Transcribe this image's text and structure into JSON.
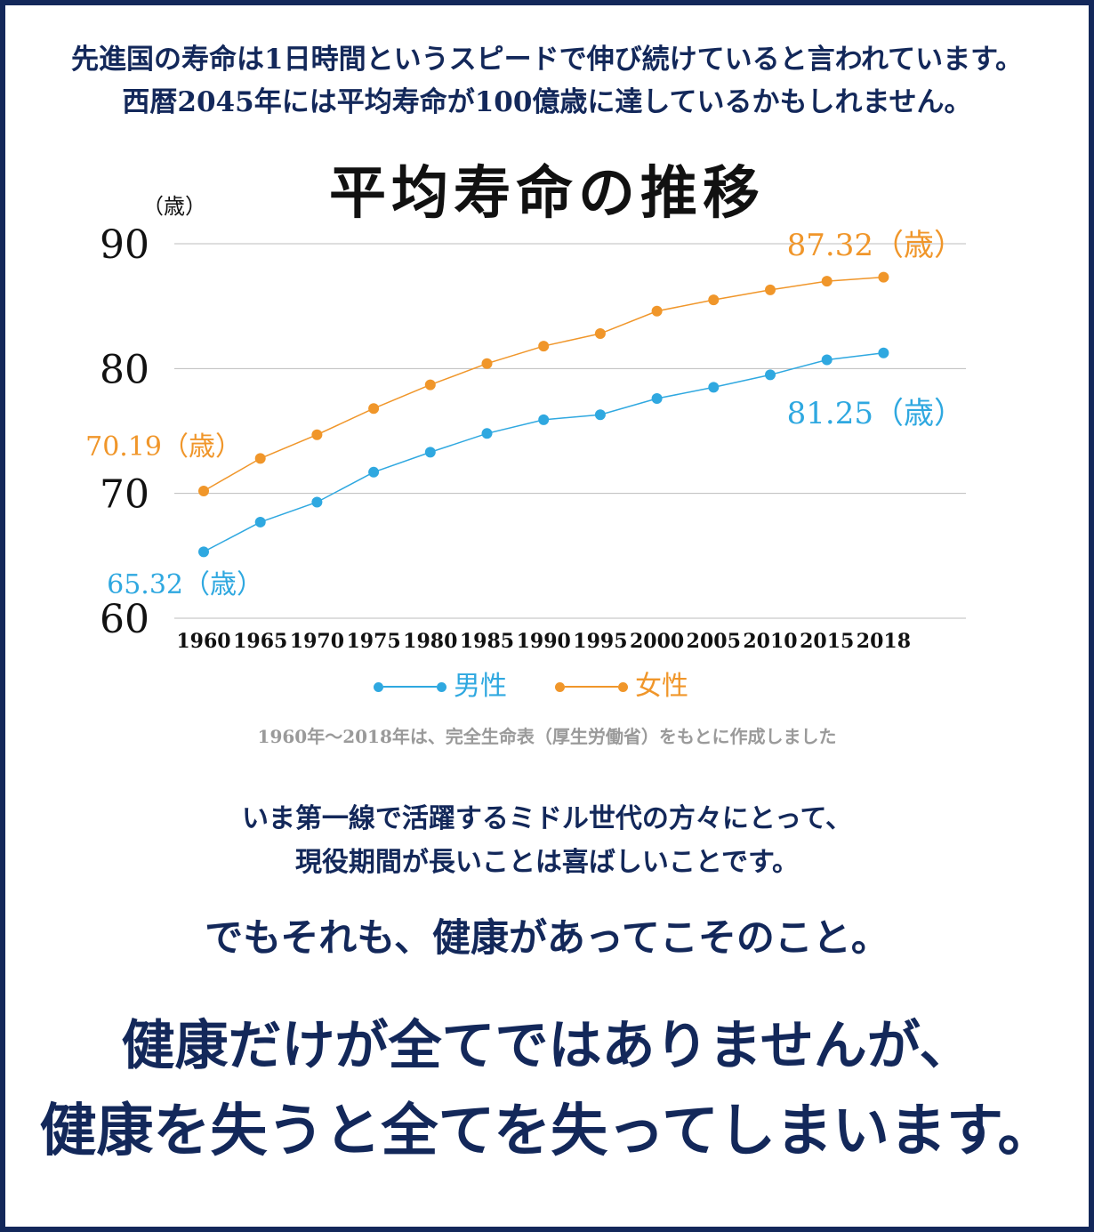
{
  "intro": {
    "line1": "先進国の寿命は1日時間というスピードで伸び続けていると言われています。",
    "line2": "西暦2045年には平均寿命が100億歳に達しているかもしれません。"
  },
  "chart_data": {
    "type": "line",
    "title": "平均寿命の推移",
    "ylabel": "（歳）",
    "xlabel": "",
    "ylim": [
      60,
      90
    ],
    "yticks": [
      "60",
      "70",
      "80",
      "90"
    ],
    "categories": [
      "1960",
      "1965",
      "1970",
      "1975",
      "1980",
      "1985",
      "1990",
      "1995",
      "2000",
      "2005",
      "2010",
      "2015",
      "2018"
    ],
    "series": [
      {
        "name": "男性",
        "color": "#2fa8e0",
        "values": [
          65.32,
          67.7,
          69.3,
          71.7,
          73.3,
          74.8,
          75.9,
          76.3,
          77.6,
          78.5,
          79.5,
          80.7,
          81.25
        ]
      },
      {
        "name": "女性",
        "color": "#f0962a",
        "values": [
          70.19,
          72.8,
          74.7,
          76.8,
          78.7,
          80.4,
          81.8,
          82.8,
          84.6,
          85.5,
          86.3,
          87.0,
          87.32
        ]
      }
    ],
    "annotations": [
      {
        "text": "87.32（歳）",
        "series": "女性",
        "point": "2018"
      },
      {
        "text": "81.25（歳）",
        "series": "男性",
        "point": "2018"
      },
      {
        "text": "70.19（歳）",
        "series": "女性",
        "point": "1960"
      },
      {
        "text": "65.32（歳）",
        "series": "男性",
        "point": "1960"
      }
    ],
    "legend": {
      "placement": "bottom",
      "male": "男性",
      "female": "女性"
    },
    "grid": true
  },
  "source": "1960年〜2018年は、完全生命表（厚生労働省）をもとに作成しました",
  "message": {
    "line1": "いま第一線で活躍するミドル世代の方々にとって、",
    "line2": "現役期間が長いことは喜ばしいことです。",
    "highlight": "でもそれも、健康があってこそのこと。"
  },
  "closing": {
    "line1": "健康だけが全てではありませんが、",
    "line2": "健康を失うと全てを失ってしまいます。"
  },
  "colors": {
    "navy": "#13285a",
    "male": "#2fa8e0",
    "female": "#f0962a",
    "highlight": "#fbf4a4",
    "grid": "#bdbdbd"
  }
}
